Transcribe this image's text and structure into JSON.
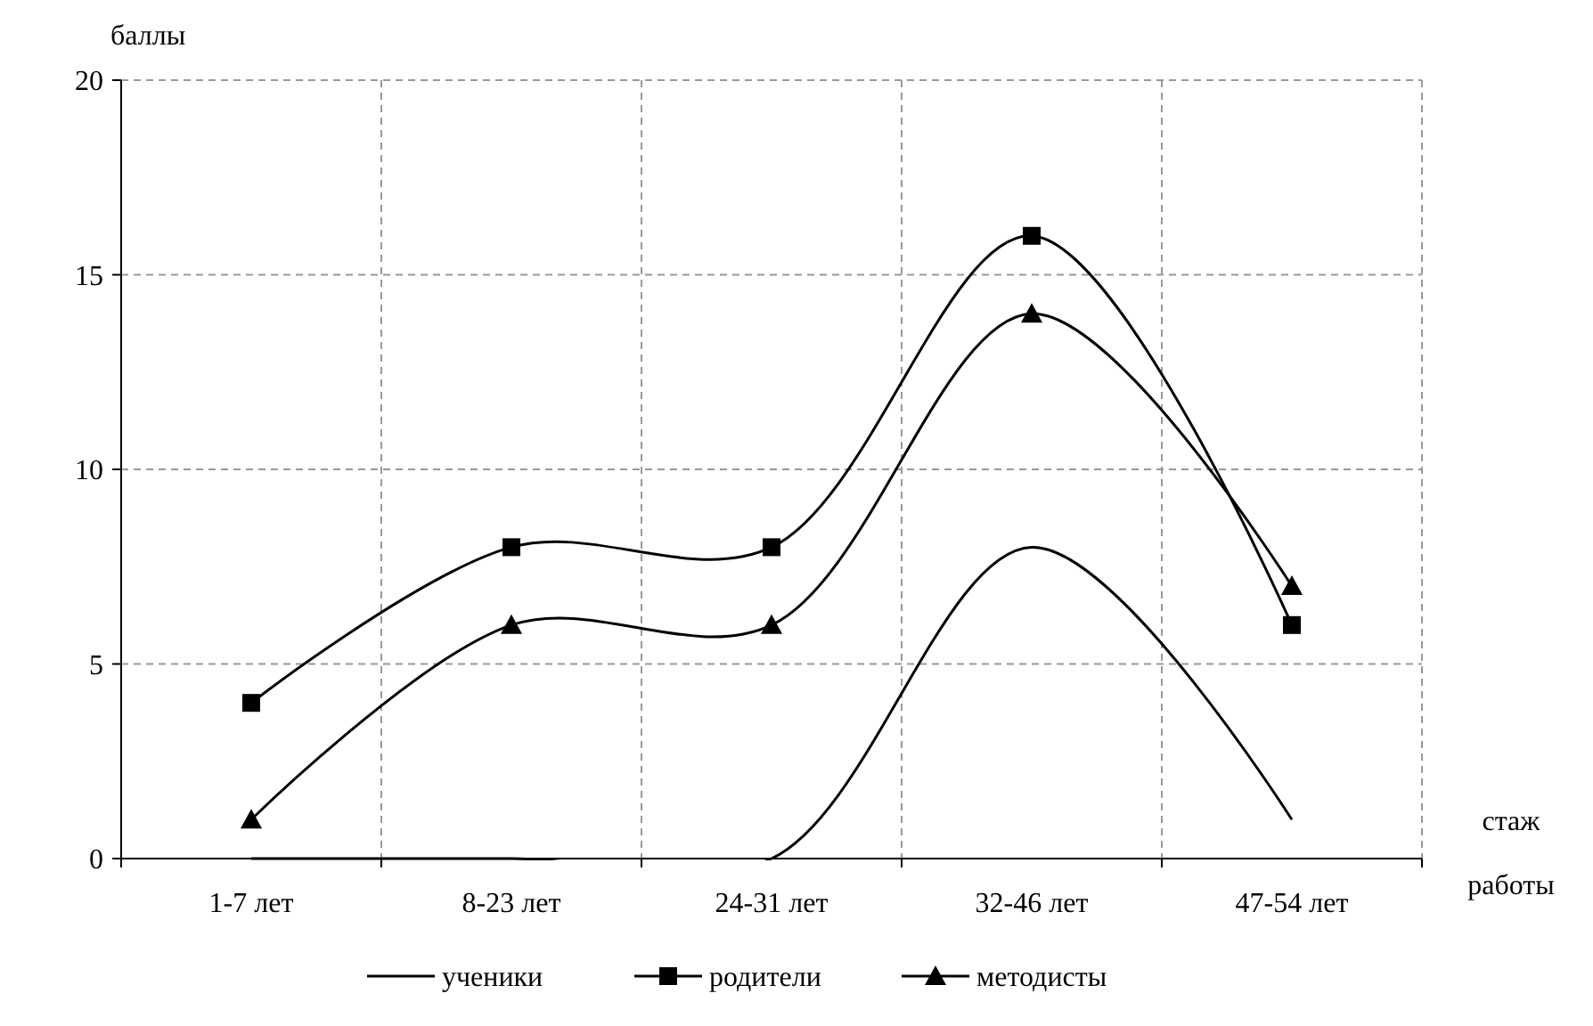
{
  "chart_data": {
    "type": "line",
    "xlabel": "стаж работы",
    "ylabel": "баллы",
    "categories": [
      "1-7 лет",
      "8-23 лет",
      "24-31 лет",
      "32-46 лет",
      "47-54 лет"
    ],
    "series": [
      {
        "name": "ученики",
        "color": "#000000",
        "values": [
          0,
          0,
          0,
          8,
          1
        ],
        "marker": "none"
      },
      {
        "name": "родители",
        "color": "#000000",
        "values": [
          4,
          8,
          8,
          16,
          6
        ],
        "marker": "square"
      },
      {
        "name": "методисты",
        "color": "#000000",
        "values": [
          1,
          6,
          6,
          14,
          7
        ],
        "marker": "triangle"
      }
    ],
    "ylim": [
      0,
      20
    ],
    "yticks": [
      0,
      5,
      10,
      15,
      20
    ],
    "grid": true,
    "legend": "bottom",
    "line_style": "solid"
  }
}
